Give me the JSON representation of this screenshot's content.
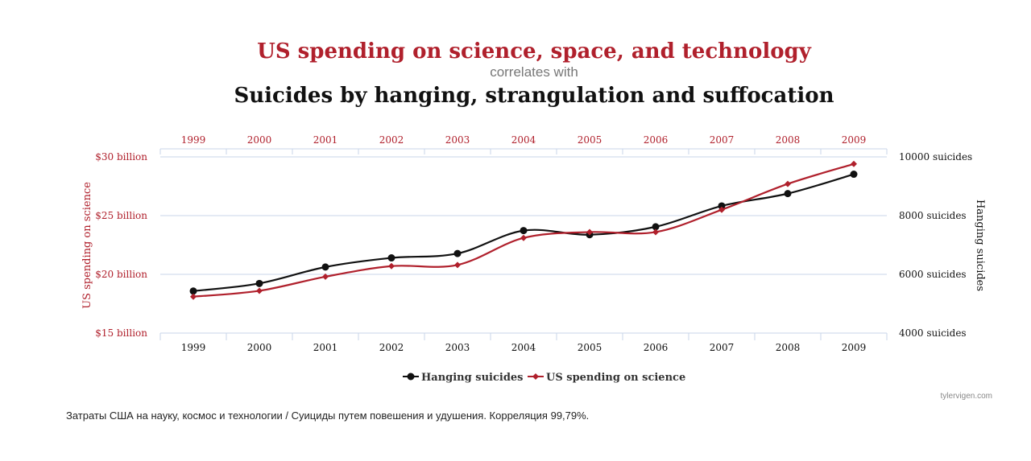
{
  "chart_data": {
    "type": "line",
    "title": "US spending on science, space, and technology",
    "subtitle": "correlates with",
    "title2": "Suicides by hanging, strangulation and suffocation",
    "categories": [
      "1999",
      "2000",
      "2001",
      "2002",
      "2003",
      "2004",
      "2005",
      "2006",
      "2007",
      "2008",
      "2009"
    ],
    "y_left": {
      "label": "US spending on science",
      "ylim": [
        15,
        30
      ],
      "ticks": [
        15,
        20,
        25,
        30
      ],
      "tick_labels": [
        "$15 billion",
        "$20 billion",
        "$25 billion",
        "$30 billion"
      ]
    },
    "y_right": {
      "label": "Hanging suicides",
      "ylim": [
        4000,
        10000
      ],
      "ticks": [
        4000,
        6000,
        8000,
        10000
      ],
      "tick_labels": [
        "4000 suicides",
        "6000 suicides",
        "8000 suicides",
        "10000 suicides"
      ]
    },
    "series": [
      {
        "name": "Hanging suicides",
        "axis": "right",
        "color": "#111111",
        "marker": "circle",
        "values": [
          5430,
          5690,
          6250,
          6560,
          6710,
          7490,
          7350,
          7620,
          8330,
          8750,
          9410
        ]
      },
      {
        "name": "US spending on science",
        "axis": "left",
        "color": "#b0202c",
        "marker": "diamond",
        "values": [
          18.1,
          18.6,
          19.8,
          20.7,
          20.8,
          23.1,
          23.6,
          23.6,
          25.5,
          27.7,
          29.4
        ]
      }
    ],
    "grid": true,
    "legend": "bottom-center"
  },
  "colors": {
    "accent": "#b0202c",
    "dark": "#111111",
    "grid": "#c9d6ea",
    "muted": "#777777"
  },
  "watermark": "tylervigen.com",
  "caption": "Затраты США на науку, космос и технологии / Суициды путем повешения и удушения. Корреляция 99,79%."
}
